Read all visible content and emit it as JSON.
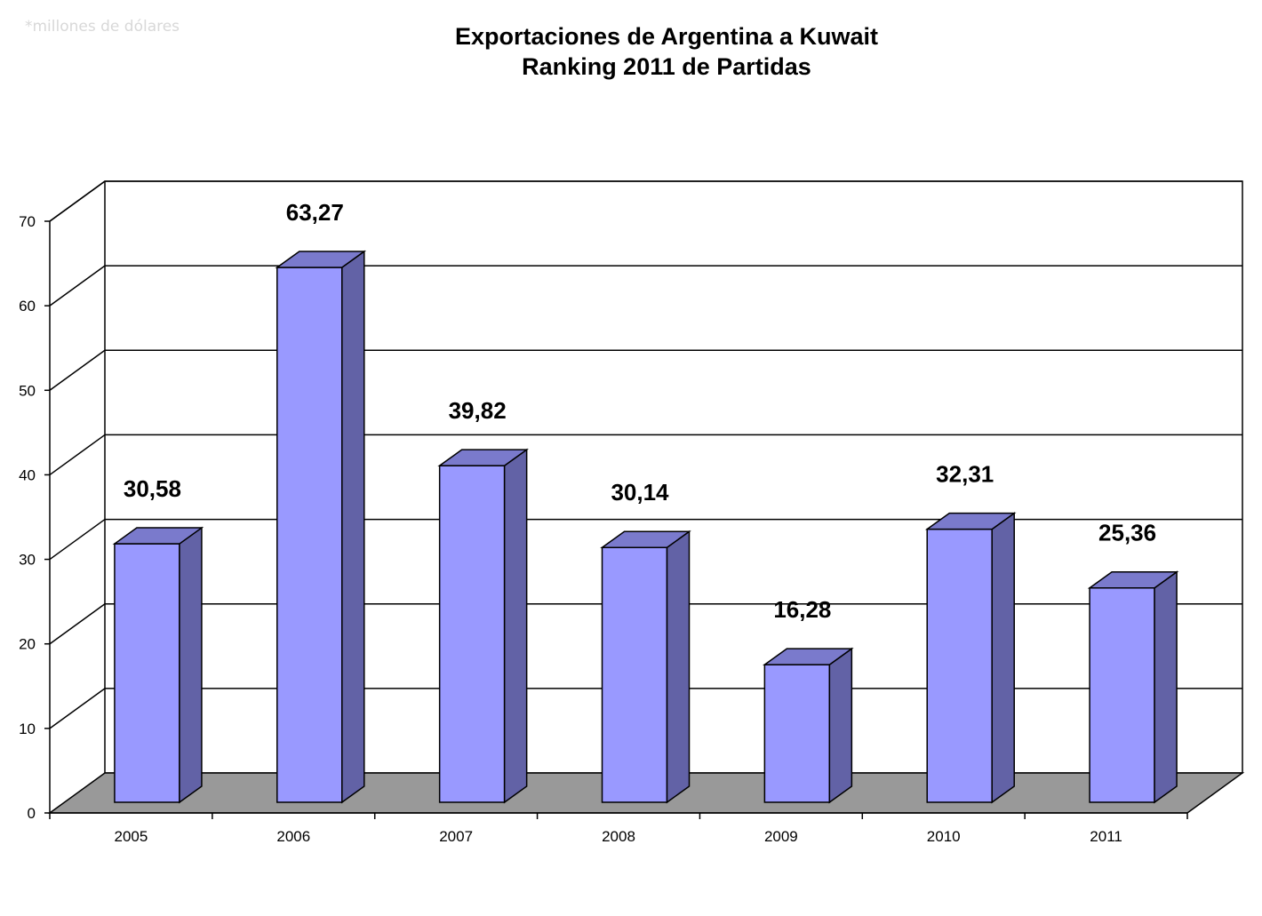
{
  "chart_data": {
    "type": "bar",
    "title": "Exportaciones de Argentina a Kuwait",
    "subtitle": "Ranking 2011 de Partidas",
    "note": "*millones de dólares",
    "categories": [
      "2005",
      "2006",
      "2007",
      "2008",
      "2009",
      "2010",
      "2011"
    ],
    "values": [
      30.58,
      63.27,
      39.82,
      30.14,
      16.28,
      32.31,
      25.36
    ],
    "value_labels": [
      "30,58",
      "63,27",
      "39,82",
      "30,14",
      "16,28",
      "32,31",
      "25,36"
    ],
    "y_ticks": [
      "0",
      "10",
      "20",
      "30",
      "40",
      "50",
      "60",
      "70"
    ],
    "ylim": [
      0,
      70
    ],
    "grid": true,
    "legend": "none",
    "style": "3d-column",
    "colors": {
      "bar_front": "#9999ff",
      "bar_side": "#6262a6",
      "bar_top": "#7a7acc",
      "floor": "#999999"
    }
  }
}
